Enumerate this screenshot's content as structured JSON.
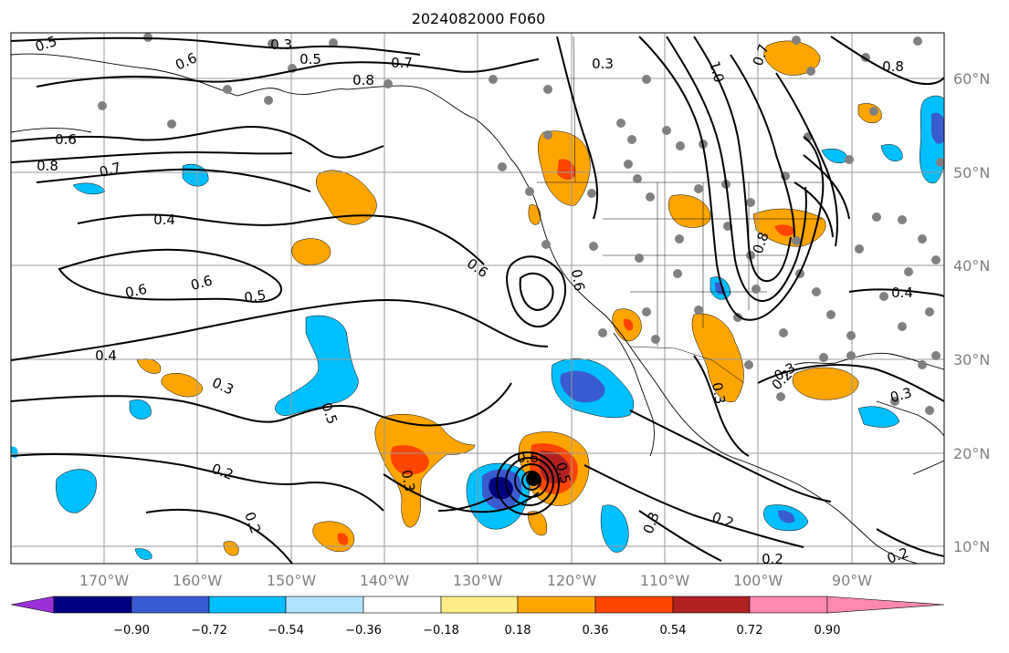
{
  "title": "2024082000 F060",
  "lat_labels": [
    "60°N",
    "50°N",
    "40°N",
    "30°N",
    "20°N",
    "10°N"
  ],
  "lon_labels": [
    "170°W",
    "160°W",
    "150°W",
    "140°W",
    "130°W",
    "120°W",
    "110°W",
    "100°W",
    "90°W"
  ],
  "colorbar": {
    "tick_labels": [
      "−0.90",
      "−0.72",
      "−0.54",
      "−0.36",
      "−0.18",
      "0.18",
      "0.36",
      "0.54",
      "0.72",
      "0.90"
    ],
    "colors": [
      "#9b30d9",
      "#000080",
      "#3a5bd0",
      "#00bfff",
      "#afe3ff",
      "#ffffff",
      "#ffed85",
      "#ffa500",
      "#ff4500",
      "#b22222",
      "#ff88b0"
    ]
  },
  "contour_labels": [
    {
      "text": "0.5"
    },
    {
      "text": "0.3"
    },
    {
      "text": "0.6"
    },
    {
      "text": "0.5"
    },
    {
      "text": "0.7"
    },
    {
      "text": "0.8"
    },
    {
      "text": "0.6"
    },
    {
      "text": "0.8"
    },
    {
      "text": "0.7"
    },
    {
      "text": "0.4"
    },
    {
      "text": "0.6"
    },
    {
      "text": "0.6"
    },
    {
      "text": "0.5"
    },
    {
      "text": "0.4"
    },
    {
      "text": "0.3"
    },
    {
      "text": "0.5"
    },
    {
      "text": "0.2"
    },
    {
      "text": "0.2"
    },
    {
      "text": "0.3"
    },
    {
      "text": "0.3"
    },
    {
      "text": "0.2"
    },
    {
      "text": "0.2"
    },
    {
      "text": "0.3"
    },
    {
      "text": "0.4"
    },
    {
      "text": "0.8"
    },
    {
      "text": "0.7"
    },
    {
      "text": "0.6"
    },
    {
      "text": "0.6"
    },
    {
      "text": "0.3"
    },
    {
      "text": "1.0"
    },
    {
      "text": "0.8"
    },
    {
      "text": "0.3"
    },
    {
      "text": "0.2"
    },
    {
      "text": "0.6"
    },
    {
      "text": "0.5"
    },
    {
      "text": "0.3"
    },
    {
      "text": "0.2"
    }
  ],
  "colors": {
    "land_outline": "#000000",
    "grid": "#9a9a9a",
    "station": "#808080",
    "contour": "#000000"
  }
}
